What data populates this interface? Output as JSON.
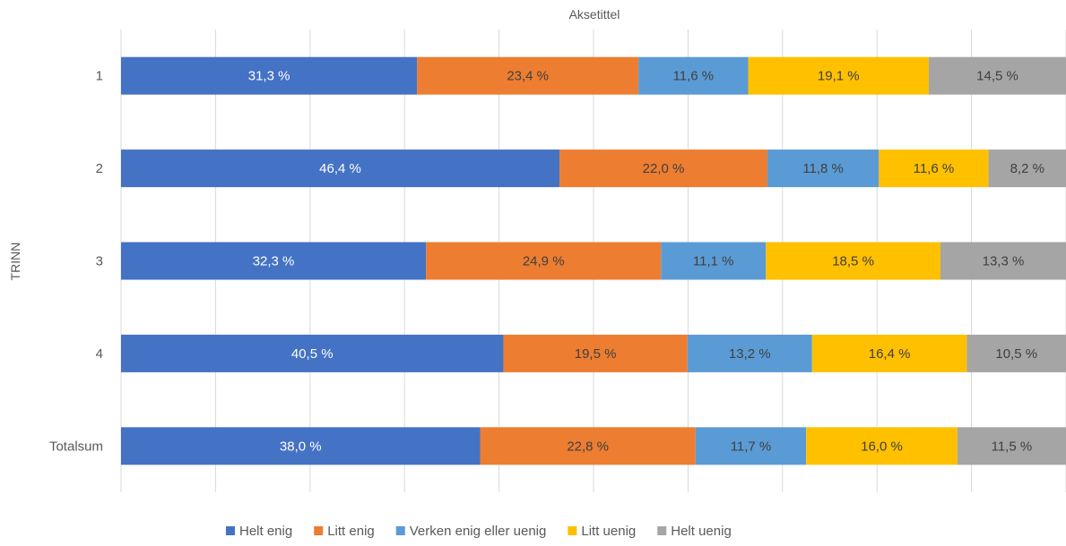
{
  "chart_data": {
    "type": "bar",
    "orientation": "horizontal",
    "stacked": "percent",
    "title": "",
    "xlabel": "Aksetittel",
    "ylabel": "TRINN",
    "xlim": [
      0,
      100
    ],
    "grid": true,
    "legend_position": "bottom",
    "categories": [
      "1",
      "2",
      "3",
      "4",
      "Totalsum"
    ],
    "series": [
      {
        "name": "Helt enig",
        "color": "#4472c4",
        "label_color": "#ffffff",
        "values": [
          31.3,
          46.4,
          32.3,
          40.5,
          38.0
        ],
        "labels": [
          "31,3 %",
          "46,4 %",
          "32,3 %",
          "40,5 %",
          "38,0 %"
        ]
      },
      {
        "name": "Litt enig",
        "color": "#ed7d31",
        "label_color": "#404040",
        "values": [
          23.4,
          22.0,
          24.9,
          19.5,
          22.8
        ],
        "labels": [
          "23,4 %",
          "22,0 %",
          "24,9 %",
          "19,5 %",
          "22,8 %"
        ]
      },
      {
        "name": "Verken enig eller uenig",
        "color": "#5b9bd5",
        "label_color": "#404040",
        "values": [
          11.6,
          11.8,
          11.1,
          13.2,
          11.7
        ],
        "labels": [
          "11,6 %",
          "11,8 %",
          "11,1 %",
          "13,2 %",
          "11,7 %"
        ]
      },
      {
        "name": "Litt uenig",
        "color": "#ffc000",
        "label_color": "#404040",
        "values": [
          19.1,
          11.6,
          18.5,
          16.4,
          16.0
        ],
        "labels": [
          "19,1 %",
          "11,6 %",
          "18,5 %",
          "16,4 %",
          "16,0 %"
        ]
      },
      {
        "name": "Helt uenig",
        "color": "#a5a5a5",
        "label_color": "#404040",
        "values": [
          14.5,
          8.2,
          13.3,
          10.5,
          11.5
        ],
        "labels": [
          "14,5 %",
          "8,2 %",
          "13,3 %",
          "10,5 %",
          "11,5 %"
        ]
      }
    ]
  }
}
